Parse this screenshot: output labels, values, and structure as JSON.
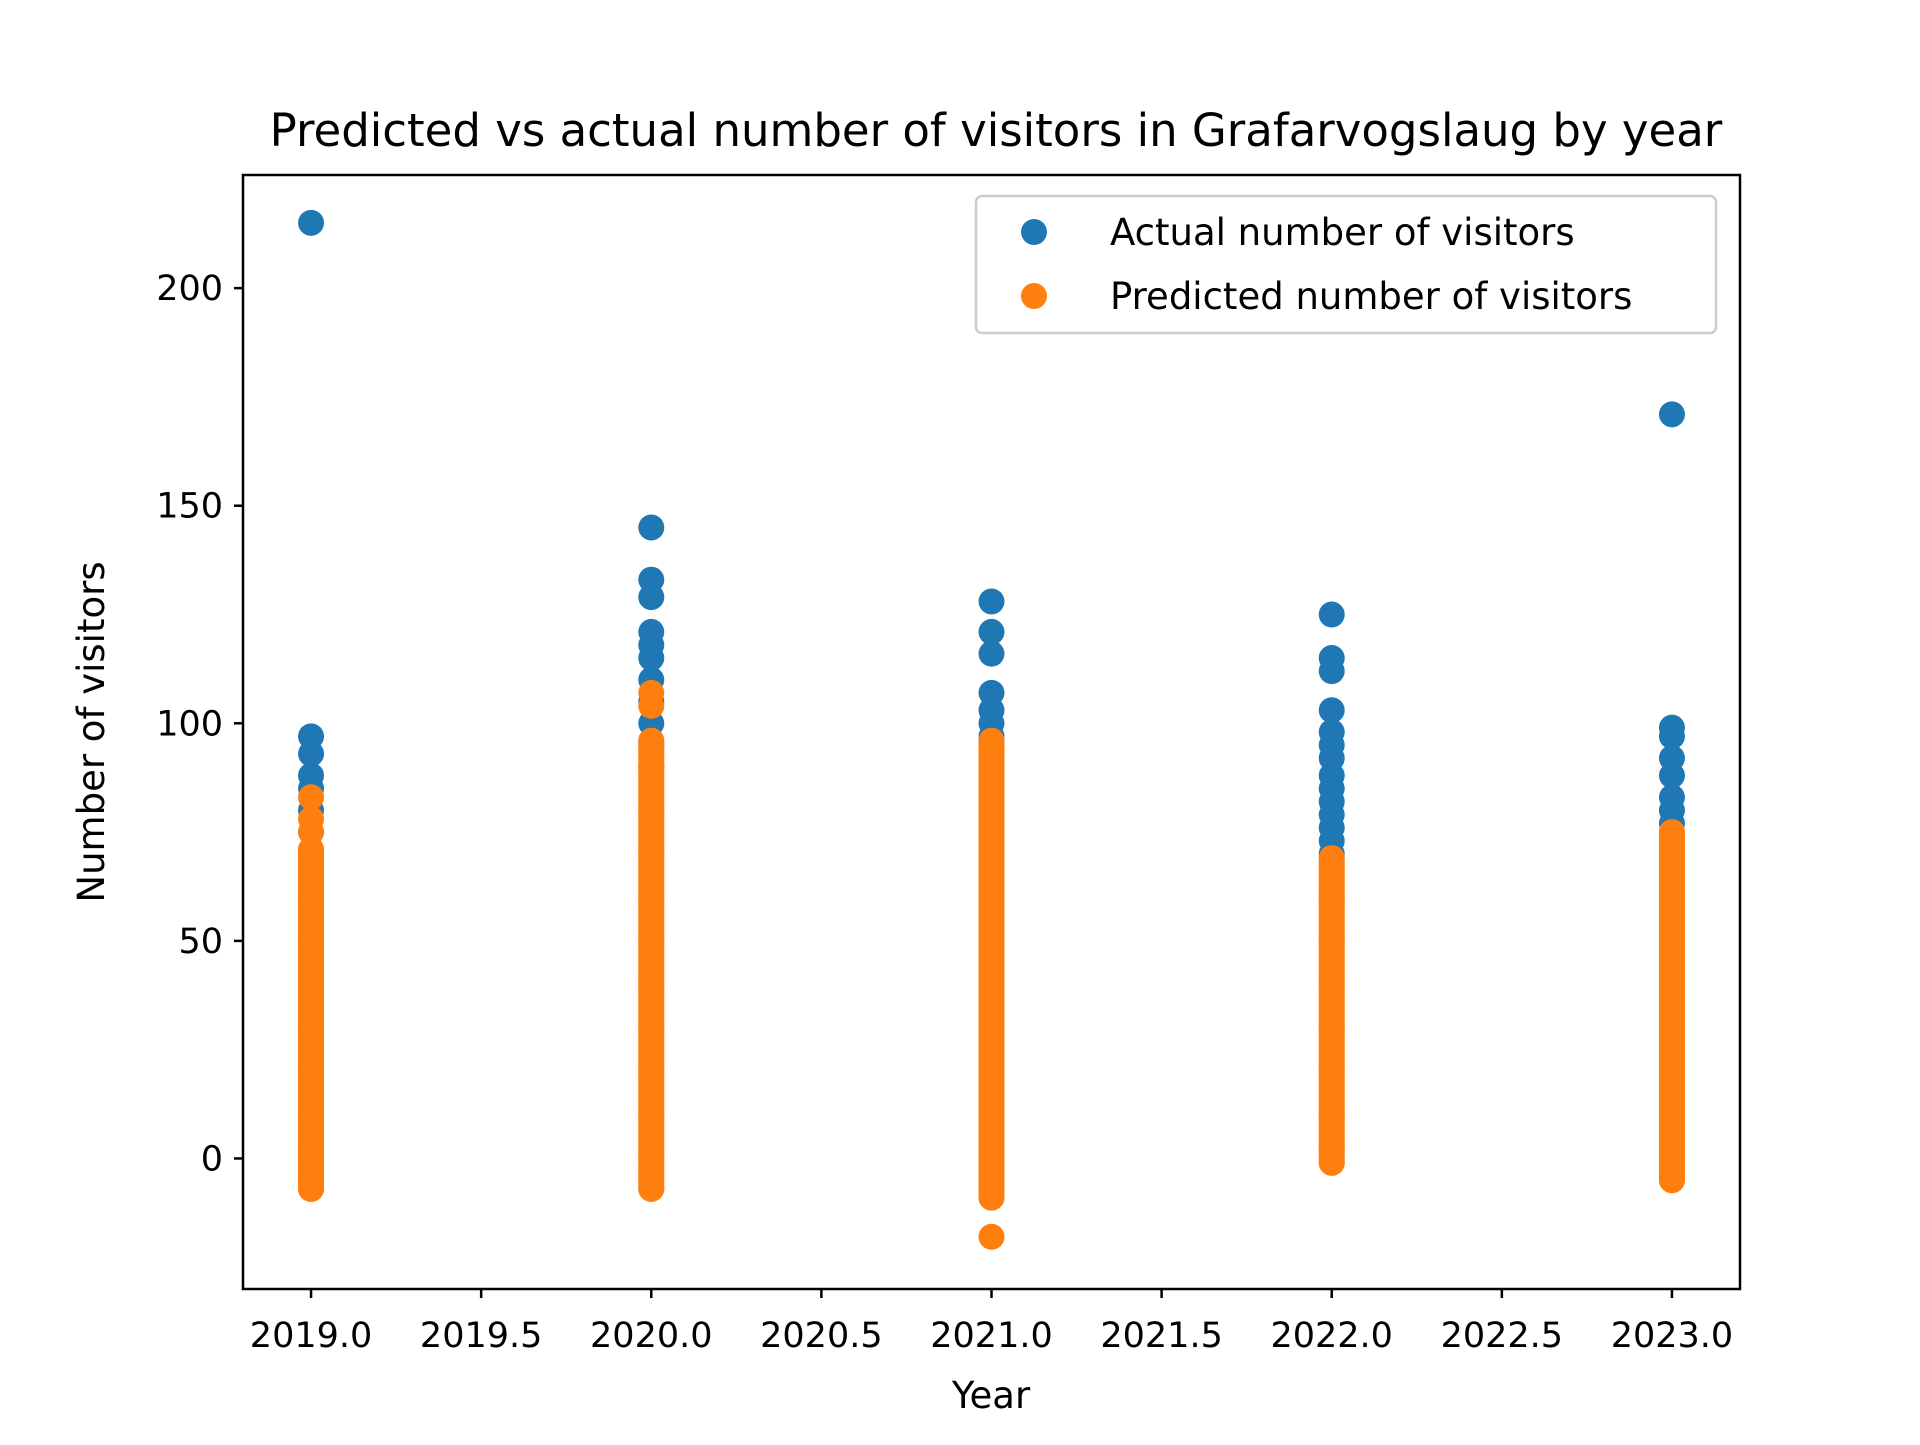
{
  "chart_data": {
    "type": "scatter",
    "title": "Predicted vs actual number of visitors in Grafarvogslaug by year",
    "xlabel": "Year",
    "ylabel": "Number of visitors",
    "xlim": [
      2018.8,
      2023.2
    ],
    "ylim": [
      -30,
      226
    ],
    "xticks": [
      2019.0,
      2019.5,
      2020.0,
      2020.5,
      2021.0,
      2021.5,
      2022.0,
      2022.5,
      2023.0
    ],
    "xtick_labels": [
      "2019.0",
      "2019.5",
      "2020.0",
      "2020.5",
      "2021.0",
      "2021.5",
      "2022.0",
      "2022.5",
      "2023.0"
    ],
    "yticks": [
      0,
      50,
      100,
      150,
      200
    ],
    "ytick_labels": [
      "0",
      "50",
      "100",
      "150",
      "200"
    ],
    "grid": false,
    "legend_position": "top-right",
    "series": [
      {
        "name": "Actual number of visitors",
        "color": "#1f77b4",
        "points": [
          {
            "x": 2019,
            "y": 215
          },
          {
            "x": 2019,
            "y": 97
          },
          {
            "x": 2019,
            "y": 93
          },
          {
            "x": 2019,
            "y": 88
          },
          {
            "x": 2019,
            "y": 85
          },
          {
            "x": 2019,
            "y": 80
          },
          {
            "x": 2019,
            "y": 75
          },
          {
            "x": 2019,
            "y": 70
          },
          {
            "x": 2019,
            "y": 2
          },
          {
            "x": 2019,
            "y": 0
          },
          {
            "x": 2020,
            "y": 145
          },
          {
            "x": 2020,
            "y": 133
          },
          {
            "x": 2020,
            "y": 129
          },
          {
            "x": 2020,
            "y": 121
          },
          {
            "x": 2020,
            "y": 118
          },
          {
            "x": 2020,
            "y": 115
          },
          {
            "x": 2020,
            "y": 110
          },
          {
            "x": 2020,
            "y": 105
          },
          {
            "x": 2020,
            "y": 100
          },
          {
            "x": 2020,
            "y": 95
          },
          {
            "x": 2020,
            "y": 90
          },
          {
            "x": 2021,
            "y": 128
          },
          {
            "x": 2021,
            "y": 121
          },
          {
            "x": 2021,
            "y": 116
          },
          {
            "x": 2021,
            "y": 107
          },
          {
            "x": 2021,
            "y": 103
          },
          {
            "x": 2021,
            "y": 100
          },
          {
            "x": 2021,
            "y": 97
          },
          {
            "x": 2021,
            "y": 93
          },
          {
            "x": 2021,
            "y": 90
          },
          {
            "x": 2022,
            "y": 125
          },
          {
            "x": 2022,
            "y": 115
          },
          {
            "x": 2022,
            "y": 112
          },
          {
            "x": 2022,
            "y": 103
          },
          {
            "x": 2022,
            "y": 98
          },
          {
            "x": 2022,
            "y": 95
          },
          {
            "x": 2022,
            "y": 92
          },
          {
            "x": 2022,
            "y": 88
          },
          {
            "x": 2022,
            "y": 85
          },
          {
            "x": 2022,
            "y": 82
          },
          {
            "x": 2022,
            "y": 79
          },
          {
            "x": 2022,
            "y": 76
          },
          {
            "x": 2022,
            "y": 73
          },
          {
            "x": 2022,
            "y": 70
          },
          {
            "x": 2023,
            "y": 171
          },
          {
            "x": 2023,
            "y": 99
          },
          {
            "x": 2023,
            "y": 97
          },
          {
            "x": 2023,
            "y": 92
          },
          {
            "x": 2023,
            "y": 88
          },
          {
            "x": 2023,
            "y": 83
          },
          {
            "x": 2023,
            "y": 80
          },
          {
            "x": 2023,
            "y": 77
          }
        ]
      },
      {
        "name": "Predicted number of visitors",
        "color": "#ff7f0e",
        "points": [
          {
            "x": 2019,
            "y": 83
          },
          {
            "x": 2019,
            "y": 78
          },
          {
            "x": 2019,
            "y": 75
          },
          {
            "x": 2019,
            "y": 71
          },
          {
            "x": 2019,
            "y": 60
          },
          {
            "x": 2019,
            "y": 50
          },
          {
            "x": 2019,
            "y": 40
          },
          {
            "x": 2019,
            "y": 30
          },
          {
            "x": 2019,
            "y": 20
          },
          {
            "x": 2019,
            "y": 10
          },
          {
            "x": 2019,
            "y": 0
          },
          {
            "x": 2019,
            "y": -5
          },
          {
            "x": 2019,
            "y": -7
          },
          {
            "x": 2020,
            "y": 107
          },
          {
            "x": 2020,
            "y": 104
          },
          {
            "x": 2020,
            "y": 96
          },
          {
            "x": 2020,
            "y": 90
          },
          {
            "x": 2020,
            "y": 80
          },
          {
            "x": 2020,
            "y": 70
          },
          {
            "x": 2020,
            "y": 60
          },
          {
            "x": 2020,
            "y": 50
          },
          {
            "x": 2020,
            "y": 40
          },
          {
            "x": 2020,
            "y": 30
          },
          {
            "x": 2020,
            "y": 20
          },
          {
            "x": 2020,
            "y": 10
          },
          {
            "x": 2020,
            "y": 0
          },
          {
            "x": 2020,
            "y": -4
          },
          {
            "x": 2020,
            "y": -7
          },
          {
            "x": 2021,
            "y": 96
          },
          {
            "x": 2021,
            "y": 90
          },
          {
            "x": 2021,
            "y": 80
          },
          {
            "x": 2021,
            "y": 70
          },
          {
            "x": 2021,
            "y": 60
          },
          {
            "x": 2021,
            "y": 50
          },
          {
            "x": 2021,
            "y": 40
          },
          {
            "x": 2021,
            "y": 30
          },
          {
            "x": 2021,
            "y": 20
          },
          {
            "x": 2021,
            "y": 10
          },
          {
            "x": 2021,
            "y": 0
          },
          {
            "x": 2021,
            "y": -5
          },
          {
            "x": 2021,
            "y": -9
          },
          {
            "x": 2021,
            "y": -18
          },
          {
            "x": 2022,
            "y": 69
          },
          {
            "x": 2022,
            "y": 60
          },
          {
            "x": 2022,
            "y": 50
          },
          {
            "x": 2022,
            "y": 40
          },
          {
            "x": 2022,
            "y": 30
          },
          {
            "x": 2022,
            "y": 20
          },
          {
            "x": 2022,
            "y": 10
          },
          {
            "x": 2022,
            "y": 2
          },
          {
            "x": 2022,
            "y": -1
          },
          {
            "x": 2023,
            "y": 75
          },
          {
            "x": 2023,
            "y": 70
          },
          {
            "x": 2023,
            "y": 60
          },
          {
            "x": 2023,
            "y": 50
          },
          {
            "x": 2023,
            "y": 40
          },
          {
            "x": 2023,
            "y": 30
          },
          {
            "x": 2023,
            "y": 20
          },
          {
            "x": 2023,
            "y": 10
          },
          {
            "x": 2023,
            "y": 0
          },
          {
            "x": 2023,
            "y": -5
          }
        ],
        "bands": [
          {
            "x": 2019,
            "y_min": -7,
            "y_max": 71
          },
          {
            "x": 2020,
            "y_min": -7,
            "y_max": 96
          },
          {
            "x": 2021,
            "y_min": -9,
            "y_max": 96
          },
          {
            "x": 2022,
            "y_min": -1,
            "y_max": 69
          },
          {
            "x": 2023,
            "y_min": -5,
            "y_max": 75
          }
        ]
      }
    ]
  }
}
